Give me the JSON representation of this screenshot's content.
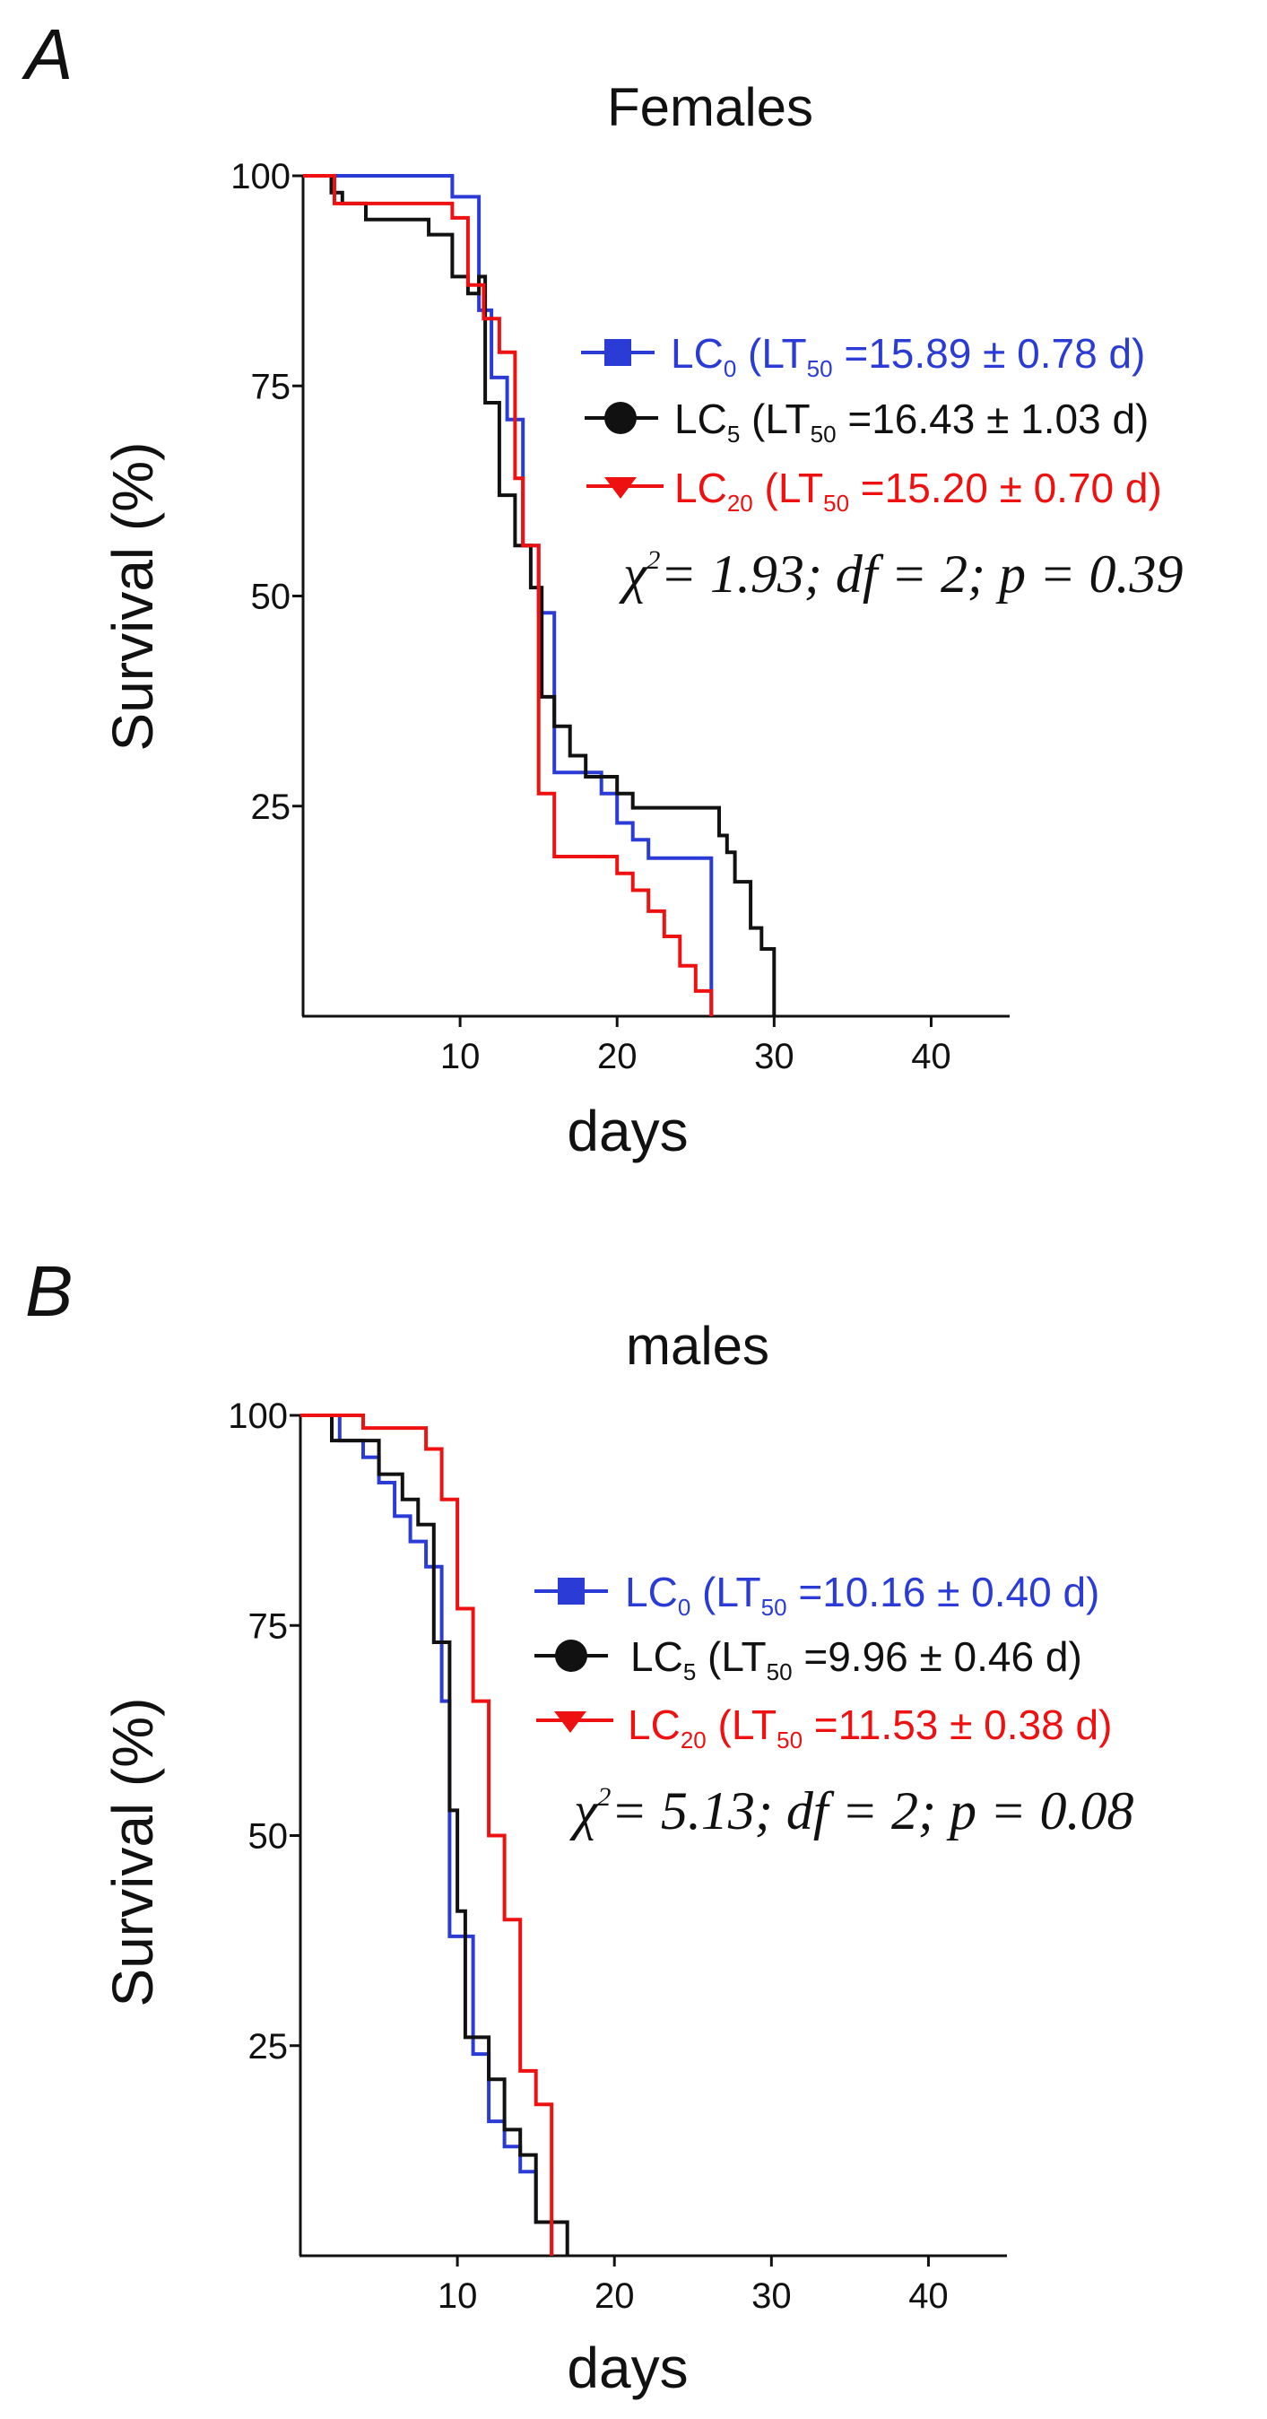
{
  "chart_data": [
    {
      "type": "line",
      "panel_label": "A",
      "title": "Females",
      "xlabel": "days",
      "ylabel": "Survival (%)",
      "xlim": [
        0,
        45
      ],
      "ylim": [
        0,
        100
      ],
      "xticks": [
        10,
        20,
        30,
        40
      ],
      "yticks": [
        25,
        50,
        75,
        100
      ],
      "legend_position": "center-right",
      "series": [
        {
          "name": "LC0",
          "legend": {
            "base": "LC",
            "sub": "0",
            "open": " (LT",
            "lt_sub": "50",
            "value": " =15.89 ± 0.78 d)"
          },
          "color": "#2b3bd6",
          "marker": "square",
          "x": [
            0,
            6,
            9.5,
            11.2,
            12,
            13,
            14,
            15,
            16,
            18,
            19,
            20,
            21,
            22,
            26,
            26
          ],
          "y": [
            100,
            100,
            97.5,
            84,
            76,
            71,
            56,
            48,
            29,
            29,
            26.5,
            23,
            21,
            18.8,
            18.8,
            0
          ]
        },
        {
          "name": "LC5",
          "legend": {
            "base": "LC",
            "sub": "5",
            "open": " (LT",
            "lt_sub": "50",
            "value": " =16.43 ± 1.03 d)"
          },
          "color": "#111111",
          "marker": "circle",
          "x": [
            0,
            1.8,
            2.5,
            4,
            6,
            8,
            9.5,
            10.5,
            11.2,
            11.6,
            12.5,
            13.5,
            14.5,
            15.2,
            16,
            17,
            18,
            20,
            21,
            25,
            26.5,
            27,
            27.5,
            28.5,
            29.2,
            30,
            30
          ],
          "y": [
            100,
            98,
            96.7,
            94.8,
            94.8,
            93,
            88,
            86,
            88,
            73,
            62,
            56,
            51,
            38,
            34.5,
            31,
            28.5,
            26.5,
            24.8,
            24.8,
            21.5,
            19.5,
            16,
            10.5,
            8,
            8,
            0
          ]
        },
        {
          "name": "LC20",
          "legend": {
            "base": "LC",
            "sub": "20",
            "open": " (LT",
            "lt_sub": "50",
            "value": " =15.20 ± 0.70 d)"
          },
          "color": "#ee1111",
          "marker": "triangle",
          "x": [
            0,
            2,
            3.5,
            5,
            9.5,
            10.5,
            11.5,
            12.5,
            13.5,
            14,
            15,
            16,
            20,
            21,
            22,
            23,
            24,
            25,
            26,
            26
          ],
          "y": [
            100,
            96.7,
            96.7,
            96.7,
            95,
            87,
            83,
            79,
            64,
            56,
            26.5,
            19,
            17,
            15,
            12.5,
            9.5,
            6,
            3,
            0,
            0
          ]
        }
      ],
      "stats": {
        "chi": "χ",
        "sq": "2",
        "text": "= 1.93; df = 2; p = 0.39"
      }
    },
    {
      "type": "line",
      "panel_label": "B",
      "title": "males",
      "xlabel": "days",
      "ylabel": "Survival (%)",
      "xlim": [
        0,
        45
      ],
      "ylim": [
        0,
        100
      ],
      "xticks": [
        10,
        20,
        30,
        40
      ],
      "yticks": [
        25,
        50,
        75,
        100
      ],
      "legend_position": "center-right",
      "series": [
        {
          "name": "LC0",
          "legend": {
            "base": "LC",
            "sub": "0",
            "open": " (LT",
            "lt_sub": "50",
            "value": " =10.16 ± 0.40 d)"
          },
          "color": "#2b3bd6",
          "marker": "square",
          "x": [
            0,
            2.5,
            4,
            5,
            6,
            7,
            8,
            9,
            9.5,
            10.2,
            11,
            12,
            13,
            14,
            15,
            16
          ],
          "y": [
            100,
            97,
            95,
            92,
            88,
            85,
            82,
            66,
            38,
            38,
            24,
            16,
            13,
            10,
            4,
            0
          ]
        },
        {
          "name": "LC5",
          "legend": {
            "base": "LC",
            "sub": "5",
            "open": " (LT",
            "lt_sub": "50",
            "value": " =9.96 ± 0.46 d)"
          },
          "color": "#111111",
          "marker": "circle",
          "x": [
            0,
            2,
            3.5,
            5,
            6.5,
            7.5,
            8.5,
            9.5,
            10,
            10.5,
            11,
            12,
            13,
            14,
            15,
            16.5,
            17,
            17
          ],
          "y": [
            100,
            97,
            97,
            93,
            90,
            87,
            73,
            53,
            41,
            26,
            26,
            21,
            15,
            12,
            4,
            4,
            0,
            0
          ]
        },
        {
          "name": "LC20",
          "legend": {
            "base": "LC",
            "sub": "20",
            "open": " (LT",
            "lt_sub": "50",
            "value": " =11.53 ± 0.38 d)"
          },
          "color": "#ee1111",
          "marker": "triangle",
          "x": [
            0,
            3,
            4,
            6.5,
            8,
            9,
            10,
            11,
            12,
            13,
            14,
            15,
            16
          ],
          "y": [
            100,
            100,
            98.5,
            98.5,
            96,
            90,
            77,
            66,
            50,
            40,
            22,
            18,
            0
          ]
        }
      ],
      "stats": {
        "chi": "χ",
        "sq": "2",
        "text": "= 5.13; df = 2; p = 0.08"
      }
    }
  ]
}
